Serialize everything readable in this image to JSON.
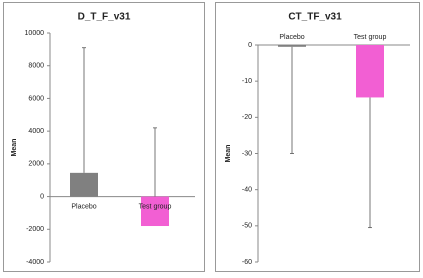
{
  "chart_data": [
    {
      "type": "bar",
      "title": "D_T_F_v31",
      "y_label": "Mean",
      "categories": [
        "Placebo",
        "Test group"
      ],
      "values": [
        1450,
        -1800
      ],
      "errors": [
        7650,
        6000
      ],
      "error_direction": "plus",
      "colors": [
        "#808080",
        "#f25fd3"
      ],
      "ylim": [
        -4000,
        10000
      ],
      "yticks": [
        -4000,
        -2000,
        0,
        2000,
        4000,
        6000,
        8000,
        10000
      ]
    },
    {
      "type": "bar",
      "title": "CT_TF_v31",
      "y_label": "Mean",
      "categories": [
        "Placebo",
        "Test group"
      ],
      "values": [
        -0.5,
        -14.5
      ],
      "errors": [
        29.5,
        36
      ],
      "error_direction": "minus",
      "colors": [
        "#808080",
        "#f25fd3"
      ],
      "ylim": [
        -60,
        0
      ],
      "yticks": [
        -60,
        -50,
        -40,
        -30,
        -20,
        -10,
        0
      ]
    }
  ]
}
